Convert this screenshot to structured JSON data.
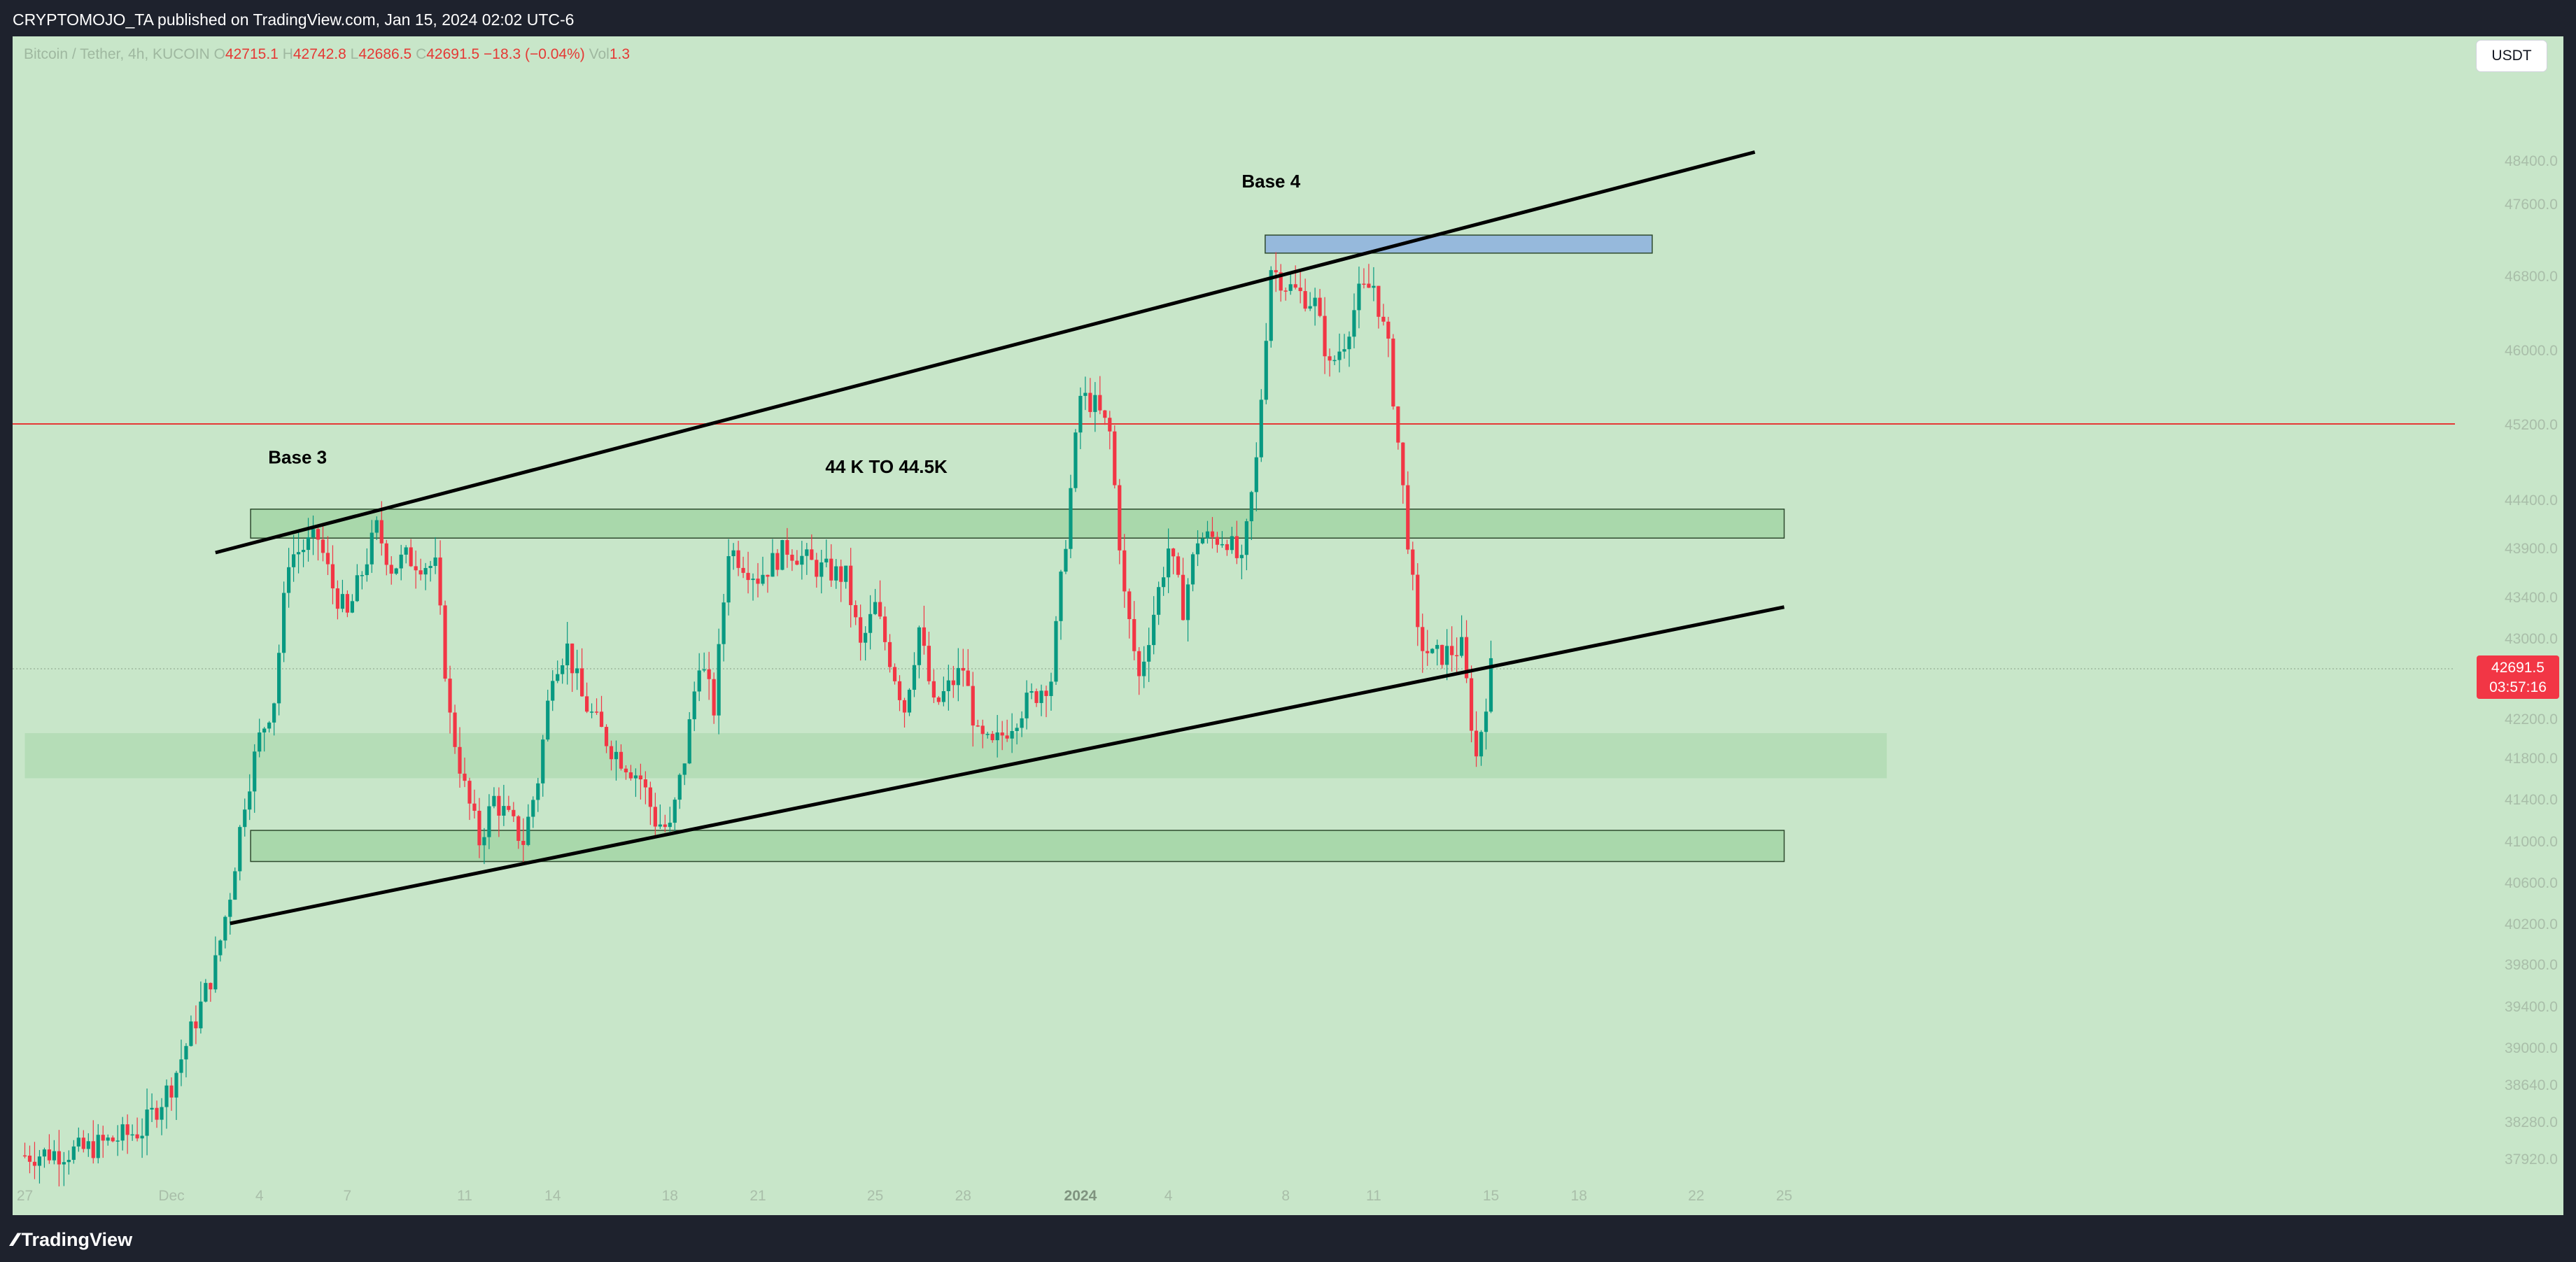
{
  "header": {
    "publisher_text": "CRYPTOMOJO_TA published on TradingView.com, Jan 15, 2024 02:02 UTC-6"
  },
  "symbol": {
    "name": "Bitcoin / Tether, 4h, KUCOIN",
    "open_key": "O",
    "open": "42715.1",
    "high_key": "H",
    "high": "42742.8",
    "low_key": "L",
    "low": "42686.5",
    "close_key": "C",
    "close": "42691.5",
    "change": "−18.3 (−0.04%)",
    "vol_key": "Vol",
    "vol": "1.3"
  },
  "currency_button": "USDT",
  "price_badge": {
    "price": "42691.5",
    "countdown": "03:57:16"
  },
  "footer": {
    "logo_text": "TradingView"
  },
  "colors": {
    "chart_bg": "#c8e6c9",
    "up": "#089981",
    "down": "#f23645",
    "zone_fill": "#a5d6a7",
    "blue_zone": "#90b4de",
    "resistance_line": "#e53935",
    "trendline": "#000000"
  },
  "chart_data": {
    "type": "candlestick",
    "title": "",
    "y_axis": {
      "range": [
        37900,
        49000
      ],
      "ticks": [
        "48400.0",
        "47600.0",
        "46800.0",
        "46000.0",
        "45200.0",
        "44400.0",
        "43900.0",
        "43400.0",
        "43000.0",
        "42600.0",
        "42200.0",
        "41800.0",
        "41400.0",
        "41000.0",
        "40600.0",
        "40200.0",
        "39800.0",
        "39400.0",
        "39000.0",
        "38640.0",
        "38280.0",
        "37920.0"
      ]
    },
    "x_axis": {
      "ticks": [
        {
          "label": "27",
          "day": -4
        },
        {
          "label": "Dec",
          "day": 1
        },
        {
          "label": "4",
          "day": 4
        },
        {
          "label": "7",
          "day": 7
        },
        {
          "label": "11",
          "day": 11
        },
        {
          "label": "14",
          "day": 14
        },
        {
          "label": "18",
          "day": 18
        },
        {
          "label": "21",
          "day": 21
        },
        {
          "label": "25",
          "day": 25
        },
        {
          "label": "28",
          "day": 28
        },
        {
          "label": "2024",
          "day": 32
        },
        {
          "label": "4",
          "day": 35
        },
        {
          "label": "8",
          "day": 39
        },
        {
          "label": "11",
          "day": 42
        },
        {
          "label": "15",
          "day": 46
        },
        {
          "label": "18",
          "day": 49
        },
        {
          "label": "22",
          "day": 53
        },
        {
          "label": "25",
          "day": 56
        }
      ]
    },
    "close_path": [
      [
        -4,
        37950
      ],
      [
        -2,
        38000
      ],
      [
        0,
        38200
      ],
      [
        1,
        38640
      ],
      [
        2,
        39400
      ],
      [
        2.5,
        39800
      ],
      [
        3,
        40500
      ],
      [
        3.5,
        41400
      ],
      [
        4,
        42000
      ],
      [
        4.5,
        42400
      ],
      [
        5,
        43800
      ],
      [
        6,
        44000
      ],
      [
        6.5,
        43500
      ],
      [
        7,
        43200
      ],
      [
        8,
        44100
      ],
      [
        8.5,
        43700
      ],
      [
        9,
        43800
      ],
      [
        10,
        43700
      ],
      [
        10.5,
        42200
      ],
      [
        11,
        41500
      ],
      [
        11.5,
        41000
      ],
      [
        12,
        41400
      ],
      [
        13,
        41000
      ],
      [
        13.5,
        41600
      ],
      [
        14,
        42700
      ],
      [
        14.5,
        42900
      ],
      [
        15,
        42400
      ],
      [
        16,
        41900
      ],
      [
        17,
        41600
      ],
      [
        17.5,
        41200
      ],
      [
        18,
        41100
      ],
      [
        18.5,
        41800
      ],
      [
        19,
        42800
      ],
      [
        19.5,
        42300
      ],
      [
        20,
        43900
      ],
      [
        21,
        43600
      ],
      [
        22,
        43900
      ],
      [
        23,
        43700
      ],
      [
        24,
        43600
      ],
      [
        24.5,
        42900
      ],
      [
        25,
        43300
      ],
      [
        26,
        42300
      ],
      [
        26.5,
        43100
      ],
      [
        27,
        42300
      ],
      [
        28,
        42700
      ],
      [
        28.5,
        42000
      ],
      [
        29,
        41900
      ],
      [
        30,
        42300
      ],
      [
        31,
        42600
      ],
      [
        31.5,
        44000
      ],
      [
        32,
        45500
      ],
      [
        32.5,
        45400
      ],
      [
        33,
        45100
      ],
      [
        33.5,
        43400
      ],
      [
        34,
        42600
      ],
      [
        35,
        43900
      ],
      [
        35.5,
        43300
      ],
      [
        36,
        44000
      ],
      [
        37,
        44000
      ],
      [
        37.5,
        43700
      ],
      [
        38,
        44800
      ],
      [
        38.5,
        46900
      ],
      [
        39,
        46700
      ],
      [
        40,
        46500
      ],
      [
        40.5,
        45800
      ],
      [
        41,
        46100
      ],
      [
        41.5,
        46600
      ],
      [
        42,
        46700
      ],
      [
        42.5,
        46000
      ],
      [
        43,
        44500
      ],
      [
        43.5,
        43000
      ],
      [
        44,
        42800
      ],
      [
        45,
        42900
      ],
      [
        45.5,
        41800
      ],
      [
        46,
        42691.5
      ]
    ],
    "annotations": [
      {
        "type": "label",
        "text": "Base 3",
        "day": 4.3,
        "price": 44780
      },
      {
        "type": "label",
        "text": "44 K TO 44.5K",
        "day": 23.3,
        "price": 44680
      },
      {
        "type": "label",
        "text": "Base 4",
        "day": 37.5,
        "price": 47900
      },
      {
        "type": "zone",
        "day_from": 3.7,
        "day_to": 56,
        "price_from": 44000,
        "price_to": 44300
      },
      {
        "type": "zone",
        "day_from": 3.7,
        "day_to": 56,
        "price_from": 40800,
        "price_to": 41100
      },
      {
        "type": "zone",
        "day_from": -4,
        "day_to": 59.5,
        "price_from": 41600,
        "price_to": 42050,
        "faint": true
      },
      {
        "type": "zone",
        "day_from": 38.3,
        "day_to": 51.5,
        "price_from": 47050,
        "price_to": 47250,
        "blue": true
      },
      {
        "type": "hline",
        "price": 45200
      },
      {
        "type": "trendline",
        "from": [
          2.5,
          43850
        ],
        "to": [
          55,
          48550
        ]
      },
      {
        "type": "trendline",
        "from": [
          3,
          40200
        ],
        "to": [
          56,
          43300
        ]
      }
    ],
    "last_price": 42691.5
  }
}
